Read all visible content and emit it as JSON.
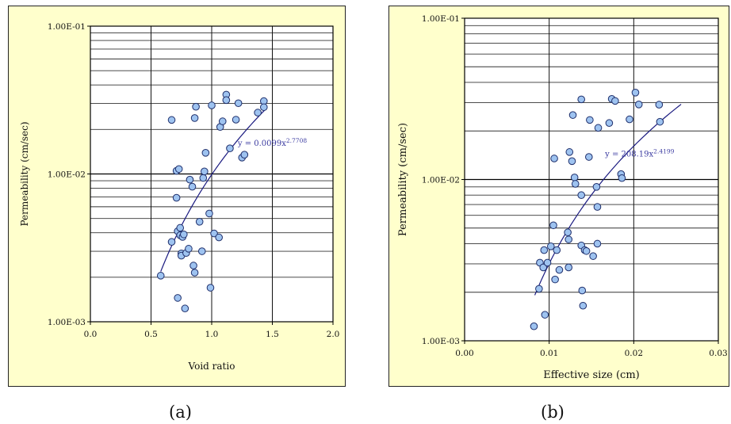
{
  "captions": [
    "(a)",
    "(b)"
  ],
  "chart_data": [
    {
      "type": "scatter",
      "title": "",
      "xlabel": "Void ratio",
      "ylabel": "Permeability (cm/sec)",
      "xlim": [
        0,
        2
      ],
      "ylim": [
        0.001,
        0.1
      ],
      "yscale": "log",
      "grid": true,
      "x_ticks": [
        0,
        0.5,
        1,
        1.5,
        2
      ],
      "x_tick_labels": [
        "0.0",
        "0.5",
        "1.0",
        "1.5",
        "2.0"
      ],
      "y_tick_labels": [
        "1.00E-03",
        "1.00E-02",
        "1.00E-01"
      ],
      "annotation": {
        "text": "y = 0.0099x",
        "exponent": "2.7708",
        "x": 1.5,
        "y": 0.0155
      },
      "trendline": {
        "coef": 0.0099,
        "power": 2.7708,
        "x_range": [
          0.58,
          1.45
        ]
      },
      "points": [
        [
          0.58,
          0.00205
        ],
        [
          0.67,
          0.0232
        ],
        [
          0.67,
          0.00347
        ],
        [
          0.71,
          0.0105
        ],
        [
          0.71,
          0.0069
        ],
        [
          0.72,
          0.00145
        ],
        [
          0.72,
          0.0041
        ],
        [
          0.73,
          0.0108
        ],
        [
          0.74,
          0.00432
        ],
        [
          0.74,
          0.00385
        ],
        [
          0.75,
          0.0029
        ],
        [
          0.75,
          0.0028
        ],
        [
          0.76,
          0.00375
        ],
        [
          0.77,
          0.0039
        ],
        [
          0.78,
          0.00123
        ],
        [
          0.79,
          0.00292
        ],
        [
          0.81,
          0.00312
        ],
        [
          0.82,
          0.00915
        ],
        [
          0.84,
          0.0082
        ],
        [
          0.85,
          0.0024
        ],
        [
          0.86,
          0.0239
        ],
        [
          0.86,
          0.00215
        ],
        [
          0.87,
          0.0285
        ],
        [
          0.9,
          0.00475
        ],
        [
          0.92,
          0.003
        ],
        [
          0.93,
          0.0094
        ],
        [
          0.94,
          0.0104
        ],
        [
          0.95,
          0.0139
        ],
        [
          0.98,
          0.0054
        ],
        [
          0.99,
          0.0017
        ],
        [
          1.0,
          0.0291
        ],
        [
          1.02,
          0.00396
        ],
        [
          1.06,
          0.00372
        ],
        [
          1.07,
          0.0208
        ],
        [
          1.09,
          0.0227
        ],
        [
          1.12,
          0.0344
        ],
        [
          1.12,
          0.0316
        ],
        [
          1.15,
          0.0149
        ],
        [
          1.2,
          0.0233
        ],
        [
          1.22,
          0.0301
        ],
        [
          1.25,
          0.0129
        ],
        [
          1.27,
          0.0135
        ],
        [
          1.38,
          0.026
        ],
        [
          1.43,
          0.0311
        ],
        [
          1.43,
          0.0283
        ]
      ]
    },
    {
      "type": "scatter",
      "title": "",
      "xlabel": "Effective size (cm)",
      "ylabel": "Permeability (cm/sec)",
      "xlim": [
        0,
        0.03
      ],
      "ylim": [
        0.001,
        0.1
      ],
      "yscale": "log",
      "grid": true,
      "x_ticks": [
        0,
        0.01,
        0.02,
        0.03
      ],
      "x_tick_labels": [
        "0.00",
        "0.01",
        "0.02",
        "0.03"
      ],
      "y_tick_labels": [
        "1.00E-03",
        "1.00E-02",
        "1.00E-01"
      ],
      "annotation": {
        "text": "y = 208.19x",
        "exponent": "2.4199",
        "x": 0.0207,
        "y": 0.0139
      },
      "trendline": {
        "coef": 208.19,
        "power": 2.4199,
        "x_range": [
          0.0083,
          0.0256
        ]
      },
      "points": [
        [
          0.0082,
          0.00123
        ],
        [
          0.0088,
          0.0021
        ],
        [
          0.0089,
          0.00305
        ],
        [
          0.0093,
          0.00285
        ],
        [
          0.0094,
          0.00365
        ],
        [
          0.0095,
          0.00145
        ],
        [
          0.0098,
          0.00305
        ],
        [
          0.0102,
          0.00385
        ],
        [
          0.0105,
          0.0052
        ],
        [
          0.0106,
          0.0135
        ],
        [
          0.0107,
          0.0024
        ],
        [
          0.0109,
          0.00365
        ],
        [
          0.0112,
          0.00275
        ],
        [
          0.0122,
          0.0047
        ],
        [
          0.0123,
          0.00425
        ],
        [
          0.0123,
          0.00285
        ],
        [
          0.0124,
          0.0148
        ],
        [
          0.0127,
          0.013
        ],
        [
          0.0128,
          0.0251
        ],
        [
          0.013,
          0.0103
        ],
        [
          0.0131,
          0.0094
        ],
        [
          0.0138,
          0.0314
        ],
        [
          0.0138,
          0.008
        ],
        [
          0.0138,
          0.0039
        ],
        [
          0.0139,
          0.00205
        ],
        [
          0.014,
          0.00165
        ],
        [
          0.0142,
          0.00365
        ],
        [
          0.0144,
          0.0036
        ],
        [
          0.0147,
          0.0138
        ],
        [
          0.0148,
          0.0234
        ],
        [
          0.0152,
          0.00335
        ],
        [
          0.0156,
          0.009
        ],
        [
          0.0157,
          0.00676
        ],
        [
          0.0157,
          0.004
        ],
        [
          0.0158,
          0.0209
        ],
        [
          0.0171,
          0.0224
        ],
        [
          0.0174,
          0.0316
        ],
        [
          0.0178,
          0.0307
        ],
        [
          0.0185,
          0.0108
        ],
        [
          0.0186,
          0.0102
        ],
        [
          0.0195,
          0.0236
        ],
        [
          0.0202,
          0.0346
        ],
        [
          0.0206,
          0.0292
        ],
        [
          0.023,
          0.0291
        ],
        [
          0.0231,
          0.0228
        ]
      ]
    }
  ]
}
